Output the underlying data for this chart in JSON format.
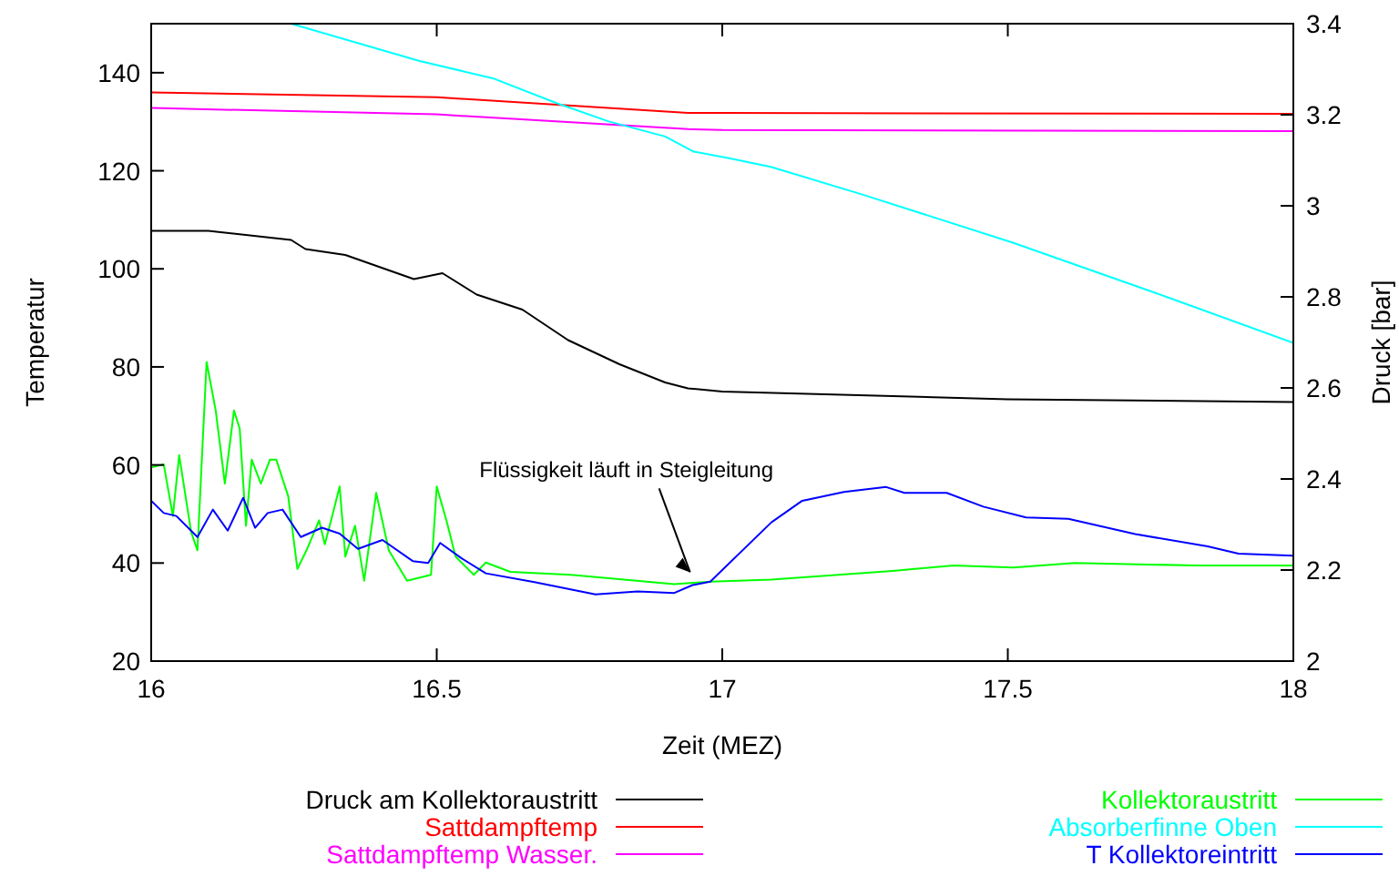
{
  "chart_data": {
    "type": "line",
    "xlabel": "Zeit (MEZ)",
    "ylabel": "Temperatur",
    "y2label": "Druck [bar]",
    "xlim": [
      16,
      18
    ],
    "xticks": [
      16,
      16.5,
      17,
      17.5,
      18
    ],
    "ylim": [
      20,
      150
    ],
    "yticks": [
      20,
      40,
      60,
      80,
      100,
      120,
      140
    ],
    "y2lim": [
      2,
      3.4
    ],
    "y2ticks": [
      2,
      2.2,
      2.4,
      2.6,
      2.8,
      3,
      3.2,
      3.4
    ],
    "legend": "bottom",
    "grid": false,
    "line_style": "solid",
    "annotations": [
      {
        "text": "Flüssigkeit läuft in Steigleitung",
        "x": 16.95,
        "y": 37
      }
    ],
    "series": [
      {
        "name": "Druck am Kollektoraustritt",
        "color": "#000000",
        "axis": "y2",
        "x": [
          16,
          16.1,
          16.245,
          16.27,
          16.34,
          16.46,
          16.51,
          16.57,
          16.65,
          16.73,
          16.82,
          16.9,
          16.94,
          17,
          17.5,
          18
        ],
        "values": [
          2.945,
          2.945,
          2.925,
          2.905,
          2.892,
          2.839,
          2.852,
          2.805,
          2.772,
          2.705,
          2.652,
          2.612,
          2.599,
          2.592,
          2.575,
          2.569
        ]
      },
      {
        "name": "Sattdampftemp",
        "color": "#ff0000",
        "x": [
          16,
          16.5,
          16.94,
          17,
          18
        ],
        "values": [
          136,
          135,
          131.8,
          131.8,
          131.6
        ]
      },
      {
        "name": "Sattdampftemp Wasser.",
        "color": "#ff00ff",
        "x": [
          16,
          16.5,
          16.94,
          17,
          18
        ],
        "values": [
          132.8,
          131.5,
          128.5,
          128.3,
          128.1
        ]
      },
      {
        "name": "Kollektoraustritt",
        "color": "#00ff00",
        "x": [
          16,
          16.022,
          16.038,
          16.049,
          16.07,
          16.081,
          16.097,
          16.113,
          16.129,
          16.145,
          16.155,
          16.166,
          16.176,
          16.192,
          16.208,
          16.219,
          16.24,
          16.256,
          16.272,
          16.294,
          16.304,
          16.315,
          16.33,
          16.34,
          16.357,
          16.373,
          16.394,
          16.416,
          16.448,
          16.49,
          16.5,
          16.517,
          16.533,
          16.565,
          16.586,
          16.629,
          16.735,
          16.916,
          16.979,
          17.086,
          17.298,
          17.405,
          17.51,
          17.617,
          17.83,
          18
        ],
        "values": [
          59.5,
          60.1,
          49.6,
          62,
          46.3,
          42.6,
          81,
          71.1,
          56.2,
          71.1,
          67.4,
          47.6,
          61.1,
          56.2,
          61.1,
          61.1,
          53.6,
          38.8,
          42.6,
          48.7,
          43.8,
          48.7,
          55.6,
          41.3,
          47.6,
          36.4,
          54.3,
          42.6,
          36.4,
          37.6,
          55.6,
          48.7,
          41.3,
          37.6,
          40.1,
          38.2,
          37.6,
          35.7,
          36.2,
          36.6,
          38.4,
          39.5,
          39.1,
          40,
          39.5,
          39.5
        ]
      },
      {
        "name": "Absorberfinne Oben",
        "color": "#00ffff",
        "x": [
          16.245,
          16.47,
          16.6,
          16.71,
          16.8,
          16.9,
          16.95,
          17.01,
          17.085,
          17.244,
          17.51,
          17.78,
          18
        ],
        "values": [
          150,
          142.4,
          138.8,
          133.8,
          130.1,
          127,
          123.9,
          122.6,
          120.8,
          115.2,
          105.3,
          94.2,
          84.9
        ]
      },
      {
        "name": "T Kollektoreintritt",
        "color": "#0000ff",
        "x": [
          16,
          16.022,
          16.044,
          16.081,
          16.108,
          16.134,
          16.161,
          16.182,
          16.204,
          16.23,
          16.262,
          16.299,
          16.33,
          16.362,
          16.405,
          16.458,
          16.485,
          16.506,
          16.543,
          16.586,
          16.671,
          16.778,
          16.852,
          16.916,
          16.948,
          16.979,
          17.086,
          17.14,
          17.213,
          17.287,
          17.319,
          17.393,
          17.457,
          17.532,
          17.606,
          17.723,
          17.85,
          17.904,
          18
        ],
        "values": [
          52.7,
          50.2,
          49.6,
          45.3,
          50.9,
          46.6,
          53.3,
          47.2,
          50.2,
          50.9,
          45.3,
          47.2,
          46,
          42.9,
          44.7,
          40.4,
          40,
          44.1,
          41,
          37.9,
          36.1,
          33.6,
          34.2,
          33.9,
          35.5,
          36.2,
          48.3,
          52.7,
          54.5,
          55.5,
          54.3,
          54.3,
          51.5,
          49.3,
          49,
          45.9,
          43.4,
          41.9,
          41.5
        ]
      }
    ]
  }
}
